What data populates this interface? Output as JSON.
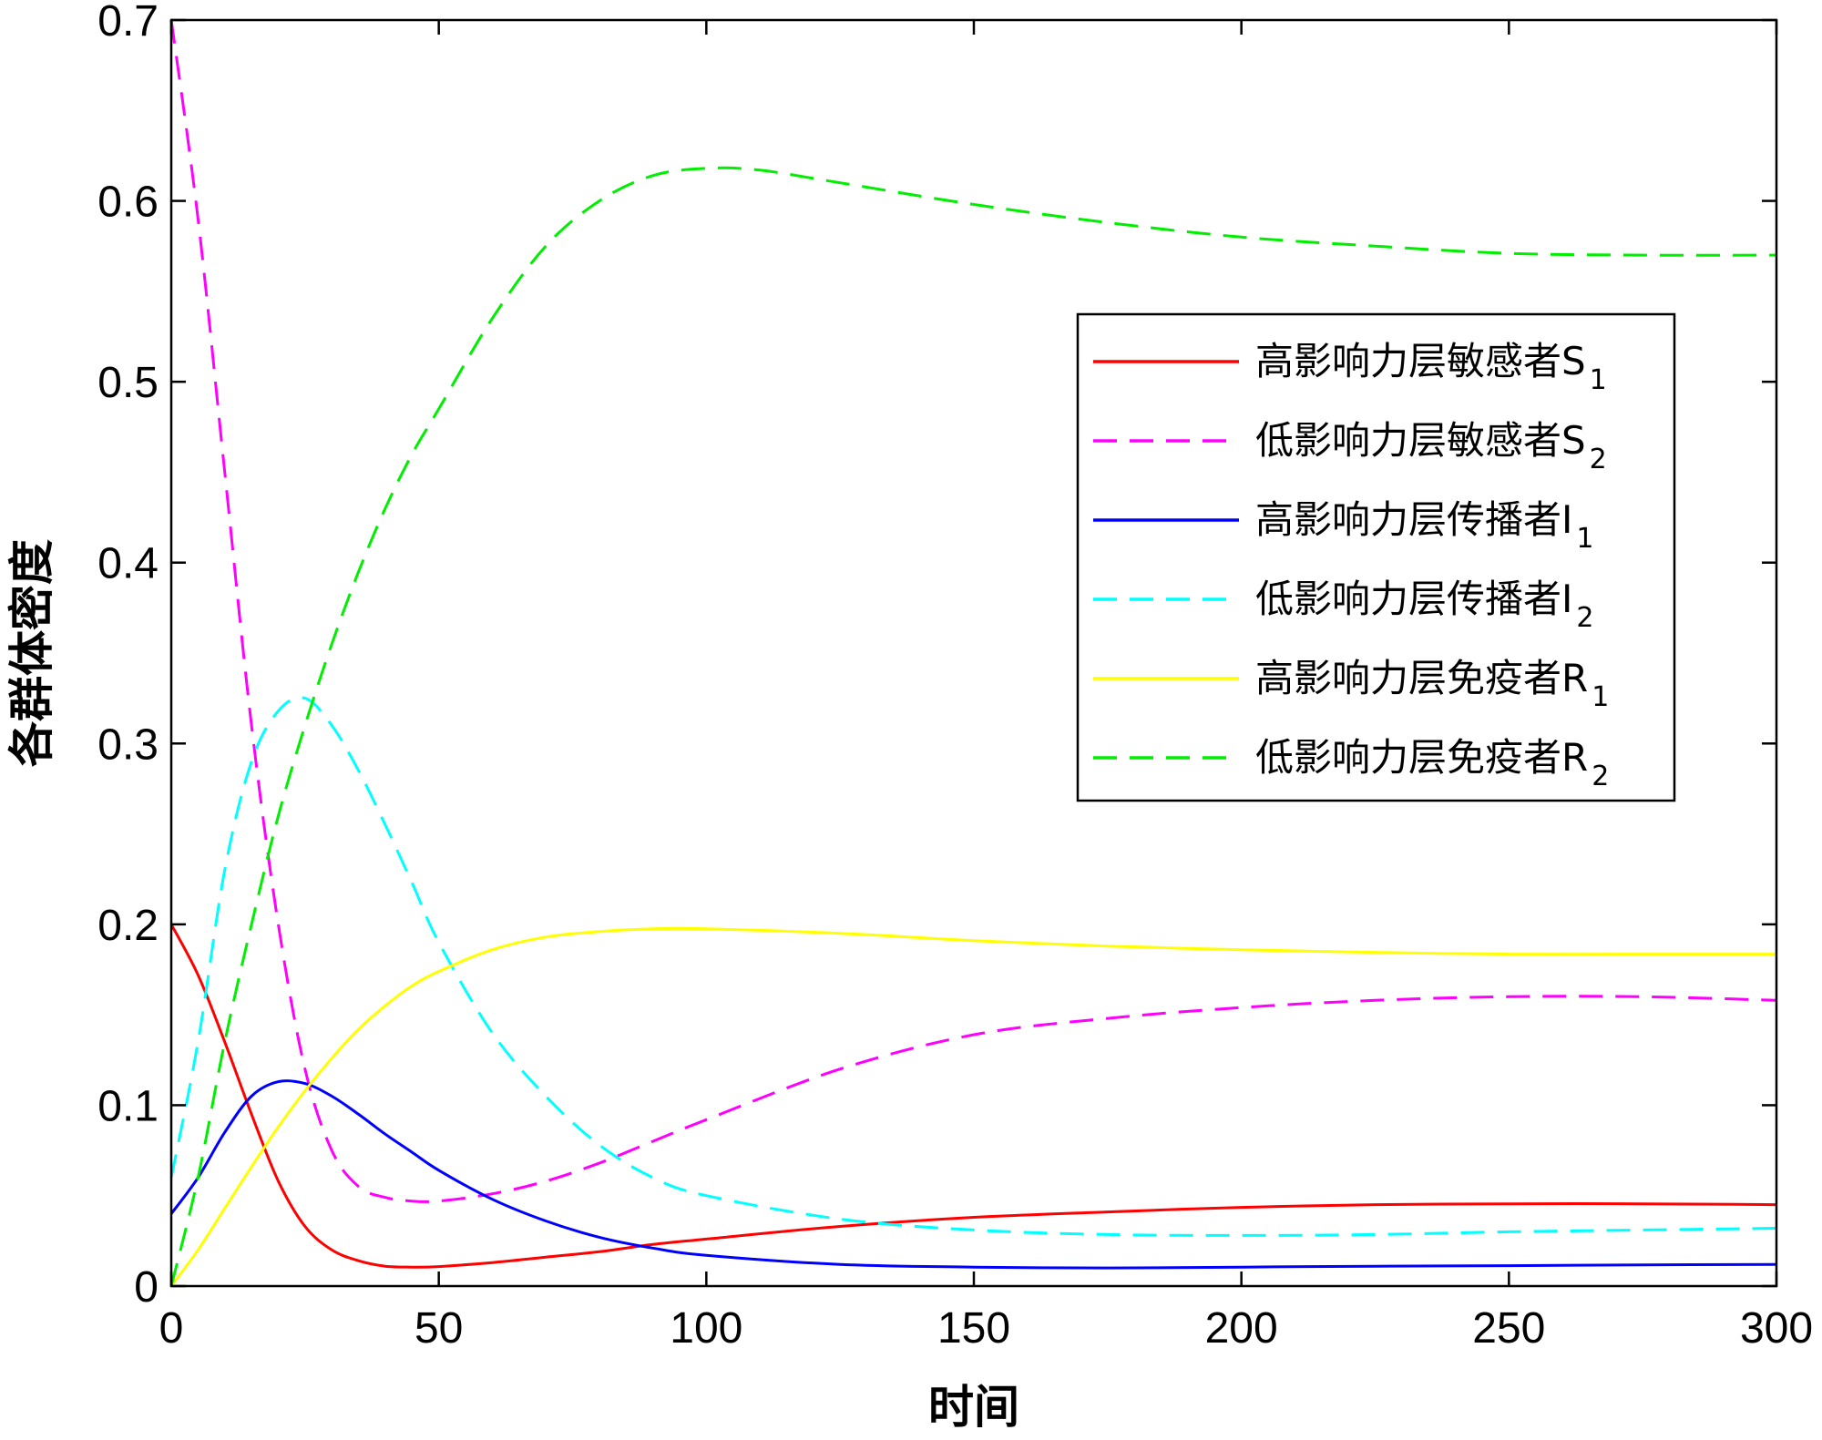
{
  "chart_data": {
    "type": "line",
    "xlabel": "时间",
    "ylabel": "各群体密度",
    "xlim": [
      0,
      300
    ],
    "ylim": [
      0,
      0.7
    ],
    "xticks": [
      "0",
      "50",
      "100",
      "150",
      "200",
      "250",
      "300"
    ],
    "yticks": [
      "0",
      "0.1",
      "0.2",
      "0.3",
      "0.4",
      "0.5",
      "0.6",
      "0.7"
    ],
    "grid": false,
    "legend_position": "upper-right",
    "series": [
      {
        "name": "高影响力层敏感者S",
        "subscript": "1",
        "color": "#ff0000",
        "dash": "solid",
        "points": [
          [
            0,
            0.2
          ],
          [
            5,
            0.172
          ],
          [
            10,
            0.135
          ],
          [
            15,
            0.095
          ],
          [
            20,
            0.058
          ],
          [
            25,
            0.033
          ],
          [
            30,
            0.02
          ],
          [
            35,
            0.014
          ],
          [
            40,
            0.011
          ],
          [
            45,
            0.0105
          ],
          [
            50,
            0.0108
          ],
          [
            60,
            0.013
          ],
          [
            70,
            0.016
          ],
          [
            80,
            0.019
          ],
          [
            90,
            0.023
          ],
          [
            100,
            0.026
          ],
          [
            125,
            0.033
          ],
          [
            150,
            0.038
          ],
          [
            175,
            0.041
          ],
          [
            200,
            0.0435
          ],
          [
            225,
            0.045
          ],
          [
            250,
            0.0455
          ],
          [
            275,
            0.0455
          ],
          [
            300,
            0.045
          ]
        ]
      },
      {
        "name": "低影响力层敏感者S",
        "subscript": "2",
        "color": "#ff00ff",
        "dash": "dashed",
        "points": [
          [
            0,
            0.7
          ],
          [
            5,
            0.59
          ],
          [
            10,
            0.45
          ],
          [
            15,
            0.31
          ],
          [
            20,
            0.2
          ],
          [
            25,
            0.12
          ],
          [
            30,
            0.075
          ],
          [
            35,
            0.055
          ],
          [
            40,
            0.049
          ],
          [
            45,
            0.047
          ],
          [
            50,
            0.047
          ],
          [
            60,
            0.051
          ],
          [
            70,
            0.058
          ],
          [
            80,
            0.068
          ],
          [
            90,
            0.08
          ],
          [
            100,
            0.092
          ],
          [
            125,
            0.12
          ],
          [
            150,
            0.139
          ],
          [
            175,
            0.148
          ],
          [
            200,
            0.154
          ],
          [
            225,
            0.158
          ],
          [
            250,
            0.16
          ],
          [
            275,
            0.16
          ],
          [
            300,
            0.158
          ]
        ]
      },
      {
        "name": "高影响力层传播者I",
        "subscript": "1",
        "color": "#0000ff",
        "dash": "solid",
        "points": [
          [
            0,
            0.04
          ],
          [
            5,
            0.06
          ],
          [
            10,
            0.085
          ],
          [
            15,
            0.105
          ],
          [
            20,
            0.113
          ],
          [
            25,
            0.112
          ],
          [
            30,
            0.105
          ],
          [
            35,
            0.095
          ],
          [
            40,
            0.084
          ],
          [
            45,
            0.074
          ],
          [
            50,
            0.064
          ],
          [
            60,
            0.048
          ],
          [
            70,
            0.036
          ],
          [
            80,
            0.027
          ],
          [
            90,
            0.021
          ],
          [
            100,
            0.017
          ],
          [
            125,
            0.012
          ],
          [
            150,
            0.0105
          ],
          [
            175,
            0.01
          ],
          [
            200,
            0.0105
          ],
          [
            225,
            0.011
          ],
          [
            250,
            0.0113
          ],
          [
            275,
            0.0117
          ],
          [
            300,
            0.012
          ]
        ]
      },
      {
        "name": "低影响力层传播者I",
        "subscript": "2",
        "color": "#00ffff",
        "dash": "dashed",
        "points": [
          [
            0,
            0.06
          ],
          [
            5,
            0.135
          ],
          [
            10,
            0.23
          ],
          [
            15,
            0.29
          ],
          [
            20,
            0.318
          ],
          [
            25,
            0.325
          ],
          [
            30,
            0.31
          ],
          [
            35,
            0.285
          ],
          [
            40,
            0.255
          ],
          [
            45,
            0.223
          ],
          [
            50,
            0.19
          ],
          [
            60,
            0.14
          ],
          [
            70,
            0.105
          ],
          [
            80,
            0.078
          ],
          [
            90,
            0.06
          ],
          [
            100,
            0.05
          ],
          [
            125,
            0.037
          ],
          [
            150,
            0.031
          ],
          [
            175,
            0.0285
          ],
          [
            200,
            0.028
          ],
          [
            225,
            0.0285
          ],
          [
            250,
            0.03
          ],
          [
            275,
            0.031
          ],
          [
            300,
            0.032
          ]
        ]
      },
      {
        "name": "高影响力层免疫者R",
        "subscript": "1",
        "color": "#ffff00",
        "dash": "solid",
        "points": [
          [
            0,
            0.0
          ],
          [
            5,
            0.02
          ],
          [
            10,
            0.043
          ],
          [
            15,
            0.066
          ],
          [
            20,
            0.088
          ],
          [
            25,
            0.108
          ],
          [
            30,
            0.126
          ],
          [
            35,
            0.142
          ],
          [
            40,
            0.155
          ],
          [
            45,
            0.166
          ],
          [
            50,
            0.174
          ],
          [
            60,
            0.186
          ],
          [
            70,
            0.193
          ],
          [
            80,
            0.196
          ],
          [
            90,
            0.1975
          ],
          [
            100,
            0.1975
          ],
          [
            125,
            0.195
          ],
          [
            150,
            0.191
          ],
          [
            175,
            0.188
          ],
          [
            200,
            0.186
          ],
          [
            225,
            0.1845
          ],
          [
            250,
            0.1835
          ],
          [
            275,
            0.1835
          ],
          [
            300,
            0.1835
          ]
        ]
      },
      {
        "name": "低影响力层免疫者R",
        "subscript": "2",
        "color": "#00ee00",
        "dash": "dashed",
        "points": [
          [
            0,
            0.0
          ],
          [
            5,
            0.06
          ],
          [
            10,
            0.135
          ],
          [
            15,
            0.2
          ],
          [
            20,
            0.26
          ],
          [
            25,
            0.31
          ],
          [
            30,
            0.355
          ],
          [
            35,
            0.395
          ],
          [
            40,
            0.43
          ],
          [
            45,
            0.46
          ],
          [
            50,
            0.485
          ],
          [
            60,
            0.535
          ],
          [
            70,
            0.575
          ],
          [
            80,
            0.6
          ],
          [
            90,
            0.614
          ],
          [
            100,
            0.618
          ],
          [
            110,
            0.617
          ],
          [
            125,
            0.61
          ],
          [
            150,
            0.598
          ],
          [
            175,
            0.588
          ],
          [
            200,
            0.58
          ],
          [
            225,
            0.575
          ],
          [
            250,
            0.571
          ],
          [
            275,
            0.57
          ],
          [
            300,
            0.57
          ]
        ]
      }
    ]
  }
}
